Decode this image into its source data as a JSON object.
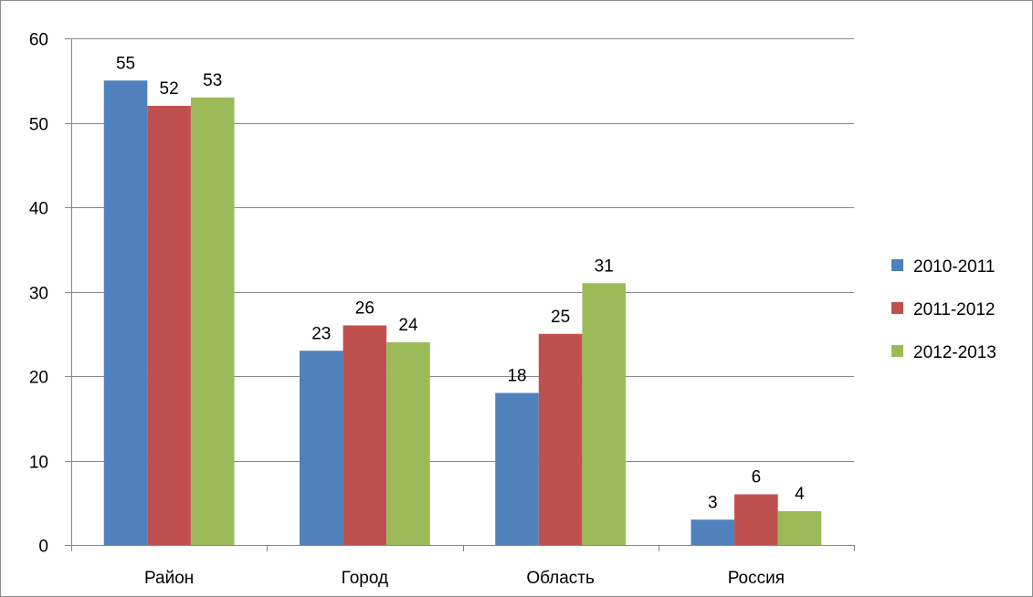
{
  "chart_data": {
    "type": "bar",
    "title": "",
    "xlabel": "",
    "ylabel": "",
    "categories": [
      "Район",
      "Город",
      "Область",
      "Россия"
    ],
    "series": [
      {
        "name": "2010-2011",
        "values": [
          55,
          23,
          18,
          3
        ],
        "color": "#4F81BD"
      },
      {
        "name": "2011-2012",
        "values": [
          52,
          26,
          25,
          6
        ],
        "color": "#C0504D"
      },
      {
        "name": "2012-2013",
        "values": [
          53,
          24,
          31,
          4
        ],
        "color": "#9BBB59"
      }
    ],
    "ylim": [
      0,
      60
    ],
    "yticks": [
      0,
      10,
      20,
      30,
      40,
      50,
      60
    ],
    "grid": true,
    "data_labels": true,
    "legend_position": "right"
  }
}
